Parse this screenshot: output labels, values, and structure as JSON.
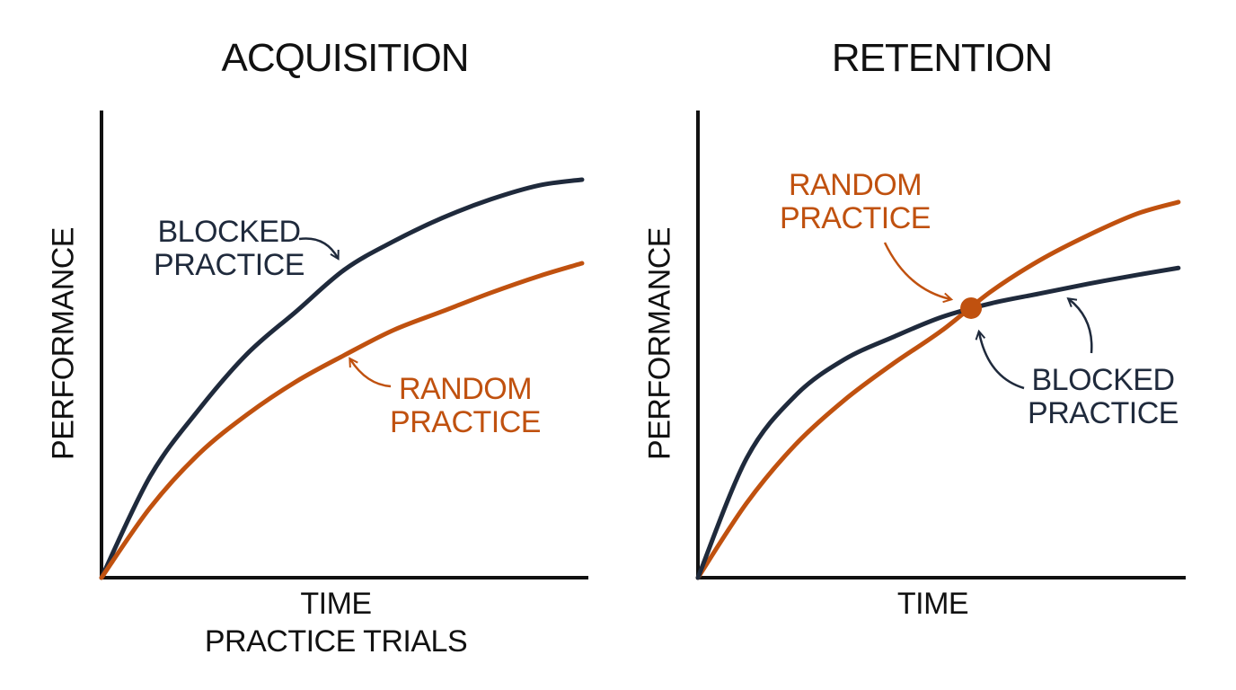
{
  "chart_data": [
    {
      "type": "line",
      "title": "ACQUISITION",
      "xlabel": "TIME",
      "xsublabel": "PRACTICE TRIALS",
      "ylabel": "PERFORMANCE",
      "xlim": [
        0,
        100
      ],
      "ylim": [
        0,
        100
      ],
      "x": [
        0,
        10,
        20,
        30,
        40,
        50,
        60,
        70,
        80,
        90,
        98.7
      ],
      "series": [
        {
          "name": "BLOCKED PRACTICE",
          "color": "#1f2a3c",
          "values": [
            0,
            21.7,
            36,
            48,
            57,
            66,
            72,
            77,
            81,
            84,
            85.2
          ]
        },
        {
          "name": "RANDOM PRACTICE",
          "color": "#c0510f",
          "values": [
            0,
            15,
            26.5,
            35,
            42,
            47.7,
            53,
            57,
            61,
            64.6,
            67.3
          ]
        }
      ]
    },
    {
      "type": "line",
      "title": "RETENTION",
      "xlabel": "TIME",
      "ylabel": "PERFORMANCE",
      "xlim": [
        0,
        100
      ],
      "ylim": [
        0,
        100
      ],
      "x": [
        0,
        10,
        20,
        30,
        40,
        50,
        60,
        70,
        80,
        90,
        98.5
      ],
      "series": [
        {
          "name": "RANDOM PRACTICE",
          "color": "#c0510f",
          "values": [
            0,
            16,
            28.5,
            38,
            45.8,
            52.9,
            61.2,
            67.9,
            73.3,
            77.9,
            80.4
          ]
        },
        {
          "name": "BLOCKED PRACTICE",
          "color": "#1f2a3c",
          "values": [
            0,
            25.6,
            39,
            46.7,
            51.5,
            55.8,
            58.7,
            60.8,
            62.9,
            64.8,
            66.3
          ]
        }
      ],
      "highlight": {
        "x": 56,
        "y": 57.7,
        "color": "#c0510f"
      }
    }
  ]
}
